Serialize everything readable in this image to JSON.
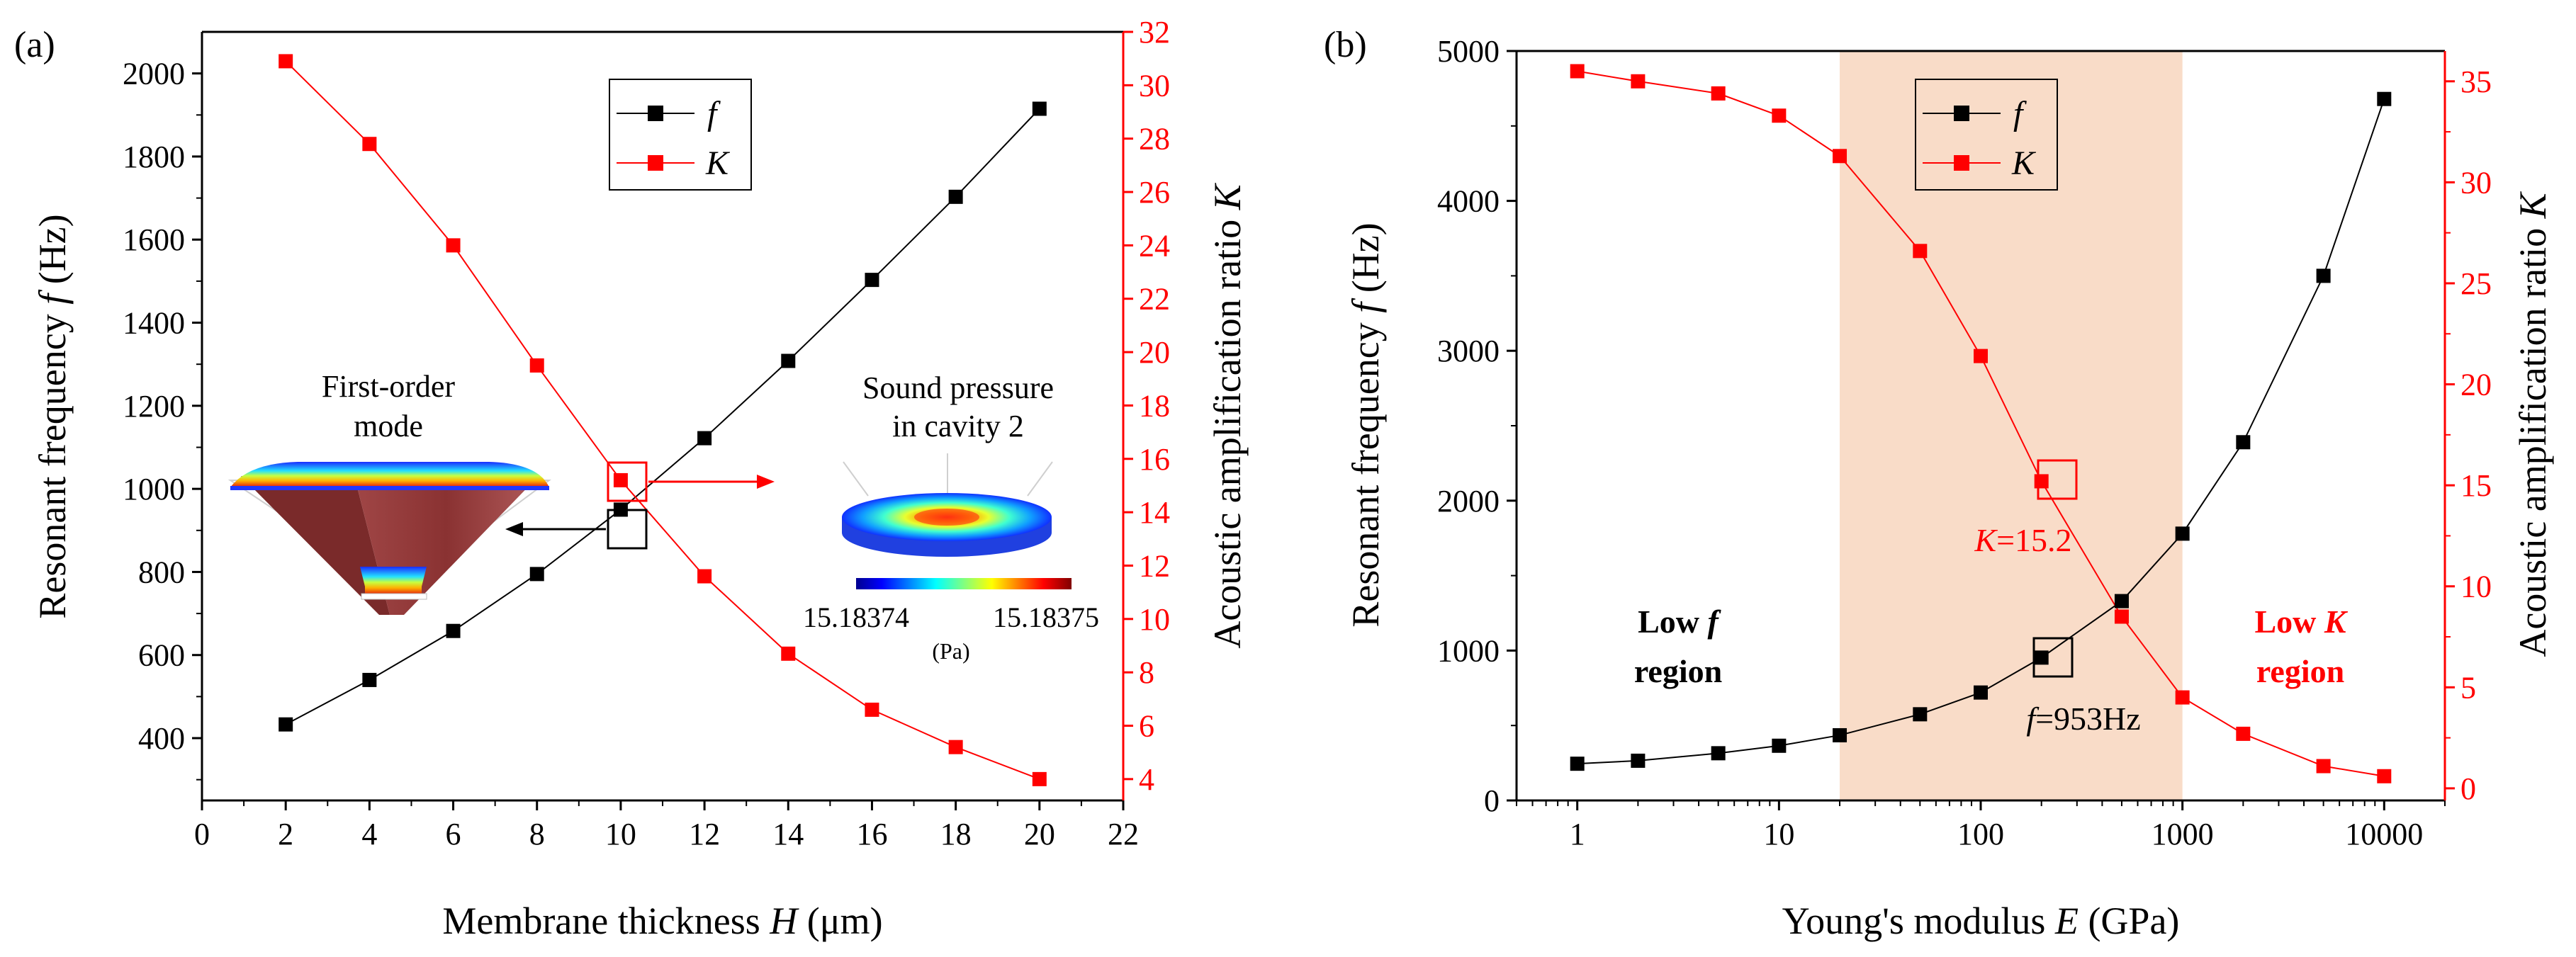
{
  "chart_data": [
    {
      "panel": "(a)",
      "type": "line",
      "xlabel": "Membrane thickness",
      "xlabel_var": "H",
      "xlabel_unit": "(μm)",
      "ylabel_left": "Resonant frequency",
      "ylabel_left_var": "f",
      "ylabel_left_unit": "(Hz)",
      "ylabel_right": "Acoustic amplification ratio",
      "ylabel_right_var": "K",
      "xlim": [
        0,
        22
      ],
      "ylim_left": [
        250,
        2100
      ],
      "ylim_right": [
        3.2,
        32
      ],
      "x_ticks": [
        0,
        2,
        4,
        6,
        8,
        10,
        12,
        14,
        16,
        18,
        20,
        22
      ],
      "y_left_ticks": [
        400,
        600,
        800,
        1000,
        1200,
        1400,
        1600,
        1800,
        2000
      ],
      "y_right_ticks": [
        4,
        6,
        8,
        10,
        12,
        14,
        16,
        18,
        20,
        22,
        24,
        26,
        28,
        30,
        32
      ],
      "series": [
        {
          "name": "f",
          "axis": "left",
          "color": "#000000",
          "x": [
            2,
            4,
            6,
            8,
            10,
            12,
            14,
            16,
            18,
            20
          ],
          "values": [
            433,
            540,
            658,
            795,
            950,
            1122,
            1308,
            1503,
            1703,
            1915
          ]
        },
        {
          "name": "K",
          "axis": "right",
          "color": "#ff0000",
          "x": [
            2,
            4,
            6,
            8,
            10,
            12,
            14,
            16,
            18,
            20
          ],
          "values": [
            30.9,
            27.8,
            24.0,
            19.5,
            15.2,
            11.6,
            8.7,
            6.6,
            5.2,
            4.0
          ]
        }
      ],
      "legend": [
        "f",
        "K"
      ],
      "annotations": {
        "mode_label_line1": "First-order",
        "mode_label_line2": "mode",
        "pressure_label_line1": "Sound pressure",
        "pressure_label_line2": "in cavity 2",
        "colorbar_min": "15.18374",
        "colorbar_max": "15.18375",
        "colorbar_unit": "(Pa)"
      }
    },
    {
      "panel": "(b)",
      "type": "line",
      "xscale": "log",
      "xlabel": "Young's modulus",
      "xlabel_var": "E",
      "xlabel_unit": "(GPa)",
      "ylabel_left": "Resonant frequency",
      "ylabel_left_var": "f",
      "ylabel_left_unit": "(Hz)",
      "ylabel_right": "Acoustic amplification ratio",
      "ylabel_right_var": "K",
      "xlim": [
        0.5,
        20000
      ],
      "ylim_left": [
        0,
        5000
      ],
      "ylim_right": [
        -0.6,
        36.5
      ],
      "x_ticks": [
        1,
        10,
        100,
        1000,
        10000
      ],
      "x_tick_labels": [
        "1",
        "10",
        "100",
        "1000",
        "10000"
      ],
      "y_left_ticks": [
        0,
        1000,
        2000,
        3000,
        4000,
        5000
      ],
      "y_right_ticks": [
        0,
        5,
        10,
        15,
        20,
        25,
        30,
        35
      ],
      "shaded_region_x": [
        20,
        1000
      ],
      "shade_color": "#f9dcc8",
      "series": [
        {
          "name": "f",
          "axis": "left",
          "color": "#000000",
          "x": [
            1,
            2,
            5,
            10,
            20,
            50,
            100,
            200,
            500,
            1000,
            2000,
            5000,
            10000
          ],
          "values": [
            245,
            265,
            315,
            365,
            435,
            575,
            720,
            953,
            1330,
            1780,
            2390,
            3500,
            4680
          ]
        },
        {
          "name": "K",
          "axis": "right",
          "color": "#ff0000",
          "x": [
            1,
            2,
            5,
            10,
            20,
            50,
            100,
            200,
            500,
            1000,
            2000,
            5000,
            10000
          ],
          "values": [
            35.5,
            35.0,
            34.4,
            33.3,
            31.3,
            26.6,
            21.4,
            15.2,
            8.5,
            4.5,
            2.7,
            1.1,
            0.6
          ]
        }
      ],
      "legend": [
        "f",
        "K"
      ],
      "annotations": {
        "k_value": "=15.2",
        "k_var": "K",
        "f_value": "=953Hz",
        "f_var": "f",
        "low_f_line1": "Low",
        "low_f_var": "f",
        "low_f_line2": "region",
        "low_k_line1": "Low",
        "low_k_var": "K",
        "low_k_line2": "region"
      }
    }
  ]
}
